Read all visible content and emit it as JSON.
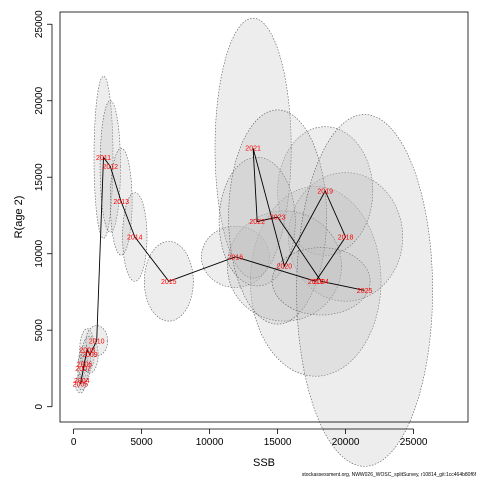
{
  "chart_data": {
    "type": "line",
    "xlabel": "SSB",
    "ylabel": "R(age 2)",
    "xlim": [
      -1000,
      29000
    ],
    "ylim": [
      -1000,
      25800
    ],
    "xticks": [
      0,
      5000,
      10000,
      15000,
      20000,
      25000
    ],
    "yticks": [
      0,
      5000,
      10000,
      15000,
      20000,
      25000
    ],
    "grid": false,
    "line_color": "#000000",
    "label_color": "#ff0000",
    "ellipse_fill": "#bfbfbf",
    "points": [
      {
        "year": "2004",
        "ssb": 600,
        "rec": 1700
      },
      {
        "year": "2005",
        "ssb": 500,
        "rec": 1500
      },
      {
        "year": "2006",
        "ssb": 800,
        "rec": 2800
      },
      {
        "year": "2007",
        "ssb": 700,
        "rec": 2500
      },
      {
        "year": "2008",
        "ssb": 1000,
        "rec": 3700
      },
      {
        "year": "2009",
        "ssb": 1200,
        "rec": 3400
      },
      {
        "year": "2010",
        "ssb": 1700,
        "rec": 4300
      },
      {
        "year": "2011",
        "ssb": 2200,
        "rec": 16300
      },
      {
        "year": "2012",
        "ssb": 2700,
        "rec": 15700
      },
      {
        "year": "2013",
        "ssb": 3500,
        "rec": 13400
      },
      {
        "year": "2014",
        "ssb": 4500,
        "rec": 11100
      },
      {
        "year": "2015",
        "ssb": 7000,
        "rec": 8200
      },
      {
        "year": "2016",
        "ssb": 11900,
        "rec": 9800
      },
      {
        "year": "2017",
        "ssb": 17800,
        "rec": 8200
      },
      {
        "year": "2018",
        "ssb": 20000,
        "rec": 11100
      },
      {
        "year": "2019",
        "ssb": 18500,
        "rec": 14100
      },
      {
        "year": "2020",
        "ssb": 15500,
        "rec": 9200
      },
      {
        "year": "2021",
        "ssb": 13200,
        "rec": 16900
      },
      {
        "year": "2022",
        "ssb": 13500,
        "rec": 12100
      },
      {
        "year": "2023",
        "ssb": 15000,
        "rec": 12400
      },
      {
        "year": "2024",
        "ssb": 18200,
        "rec": 8200
      },
      {
        "year": "2025",
        "ssb": 21400,
        "rec": 7600
      }
    ],
    "ellipses": [
      {
        "year": "2004",
        "cx": 600,
        "cy": 1700,
        "rx": 350,
        "ry": 600
      },
      {
        "year": "2005",
        "cx": 500,
        "cy": 1500,
        "rx": 350,
        "ry": 600
      },
      {
        "year": "2006",
        "cx": 800,
        "cy": 2800,
        "rx": 450,
        "ry": 1200
      },
      {
        "year": "2007",
        "cx": 700,
        "cy": 2500,
        "rx": 400,
        "ry": 1000
      },
      {
        "year": "2008",
        "cx": 1000,
        "cy": 3700,
        "rx": 550,
        "ry": 1400
      },
      {
        "year": "2009",
        "cx": 1200,
        "cy": 3400,
        "rx": 600,
        "ry": 1200
      },
      {
        "year": "2010",
        "cx": 1700,
        "cy": 4300,
        "rx": 800,
        "ry": 1000
      },
      {
        "year": "2011",
        "cx": 2200,
        "cy": 16300,
        "rx": 700,
        "ry": 5300
      },
      {
        "year": "2012",
        "cx": 2700,
        "cy": 15700,
        "rx": 750,
        "ry": 4300
      },
      {
        "year": "2013",
        "cx": 3500,
        "cy": 13400,
        "rx": 800,
        "ry": 3500
      },
      {
        "year": "2014",
        "cx": 4500,
        "cy": 11100,
        "rx": 900,
        "ry": 2900
      },
      {
        "year": "2015",
        "cx": 7000,
        "cy": 8200,
        "rx": 1800,
        "ry": 2600
      },
      {
        "year": "2016",
        "cx": 11900,
        "cy": 9800,
        "rx": 2500,
        "ry": 2000
      },
      {
        "year": "2017",
        "cx": 17800,
        "cy": 8200,
        "rx": 4800,
        "ry": 6200
      },
      {
        "year": "2018",
        "cx": 20000,
        "cy": 11100,
        "rx": 4200,
        "ry": 4200
      },
      {
        "year": "2019",
        "cx": 18500,
        "cy": 14100,
        "rx": 3500,
        "ry": 4200
      },
      {
        "year": "2020",
        "cx": 15500,
        "cy": 9200,
        "rx": 4200,
        "ry": 3600
      },
      {
        "year": "2021",
        "cx": 13200,
        "cy": 16900,
        "rx": 2800,
        "ry": 8500
      },
      {
        "year": "2022",
        "cx": 13500,
        "cy": 12100,
        "rx": 2800,
        "ry": 4200
      },
      {
        "year": "2023",
        "cx": 15000,
        "cy": 12400,
        "rx": 3600,
        "ry": 7000
      },
      {
        "year": "2024",
        "cx": 18200,
        "cy": 8200,
        "rx": 3600,
        "ry": 2200
      },
      {
        "year": "2025",
        "cx": 21400,
        "cy": 7600,
        "rx": 5000,
        "ry": 11500
      }
    ]
  },
  "footer": "stockassessment.org, NWW026_WOSC_splitSurvey, r10814_git:1cc464b80f6f"
}
